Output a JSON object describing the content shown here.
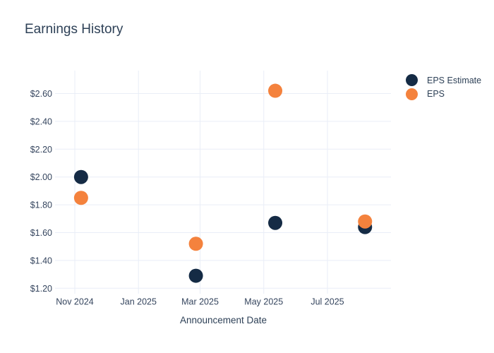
{
  "title": "Earnings History",
  "colors": {
    "background": "#ffffff",
    "title_text": "#2e4157",
    "axis_text": "#35455e",
    "grid_line": "#e9eef7",
    "eps_estimate_marker": "#152b45",
    "eps_marker": "#f4823d"
  },
  "chart_data": {
    "type": "scatter",
    "title": "Earnings History",
    "xlabel": "Announcement Date",
    "ylabel": "",
    "grid": true,
    "legend_position": "top-right",
    "marker_diameter_px": 20,
    "ylim": [
      1.16,
      2.77
    ],
    "xlim_dates": [
      "2024-10-13",
      "2025-09-01"
    ],
    "y_ticks": [
      {
        "label": "$2.60",
        "value": 2.6
      },
      {
        "label": "$2.40",
        "value": 2.4
      },
      {
        "label": "$2.20",
        "value": 2.2
      },
      {
        "label": "$2.00",
        "value": 2.0
      },
      {
        "label": "$1.80",
        "value": 1.8
      },
      {
        "label": "$1.60",
        "value": 1.6
      },
      {
        "label": "$1.40",
        "value": 1.4
      },
      {
        "label": "$1.20",
        "value": 1.2
      }
    ],
    "x_ticks": [
      {
        "label": "Nov 2024",
        "date": "2024-11-01"
      },
      {
        "label": "Jan 2025",
        "date": "2025-01-01"
      },
      {
        "label": "Mar 2025",
        "date": "2025-03-01"
      },
      {
        "label": "May 2025",
        "date": "2025-05-01"
      },
      {
        "label": "Jul 2025",
        "date": "2025-07-01"
      }
    ],
    "series": [
      {
        "name": "EPS Estimate",
        "color": "#152b45",
        "points": [
          {
            "date": "2024-11-07",
            "value": 2.0
          },
          {
            "date": "2025-02-25",
            "value": 1.29
          },
          {
            "date": "2025-05-12",
            "value": 1.67
          },
          {
            "date": "2025-08-06",
            "value": 1.64
          }
        ]
      },
      {
        "name": "EPS",
        "color": "#f4823d",
        "points": [
          {
            "date": "2024-11-07",
            "value": 1.85
          },
          {
            "date": "2025-02-25",
            "value": 1.52
          },
          {
            "date": "2025-05-12",
            "value": 2.62
          },
          {
            "date": "2025-08-06",
            "value": 1.68
          }
        ]
      }
    ]
  }
}
